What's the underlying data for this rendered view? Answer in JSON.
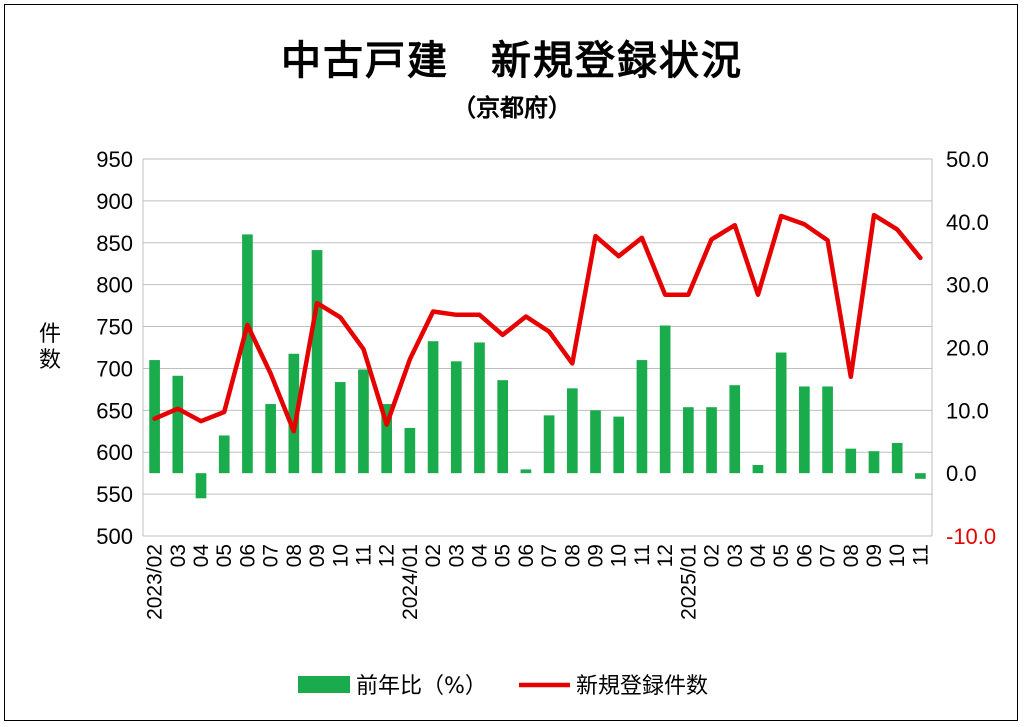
{
  "title": "中古戸建　新規登録状況",
  "subtitle": "（京都府）",
  "colors": {
    "bar": "#1aab4c",
    "line": "#e60000",
    "negative_label": "#e60000",
    "grid": "#bfbfbf"
  },
  "chart_data": {
    "type": "bar+line",
    "x_labels": [
      "2023/02",
      "03",
      "04",
      "05",
      "06",
      "07",
      "08",
      "09",
      "10",
      "11",
      "12",
      "2024/01",
      "02",
      "03",
      "04",
      "05",
      "06",
      "07",
      "08",
      "09",
      "10",
      "11",
      "12",
      "2025/01",
      "02",
      "03",
      "04",
      "05",
      "06",
      "07",
      "08",
      "09",
      "10",
      "11"
    ],
    "series": [
      {
        "name": "前年比（%）",
        "type": "bar",
        "axis": "right",
        "values": [
          18.0,
          15.5,
          -4.0,
          6.0,
          38.0,
          11.0,
          19.0,
          35.5,
          14.5,
          16.5,
          11.0,
          7.2,
          21.0,
          17.8,
          20.8,
          14.8,
          0.6,
          9.2,
          13.5,
          10.0,
          9.0,
          18.0,
          23.5,
          10.5,
          10.5,
          14.0,
          1.3,
          19.2,
          13.8,
          13.8,
          3.9,
          3.5,
          4.8,
          -0.9
        ]
      },
      {
        "name": "新規登録件数",
        "type": "line",
        "axis": "left",
        "values": [
          640,
          652,
          637,
          648,
          752,
          694,
          625,
          778,
          761,
          723,
          633,
          711,
          768,
          764,
          764,
          740,
          762,
          744,
          706,
          858,
          834,
          856,
          788,
          788,
          854,
          871,
          788,
          882,
          872,
          853,
          690,
          883,
          866,
          832
        ]
      }
    ],
    "y_left": {
      "label": "件数",
      "min": 500,
      "max": 950,
      "step": 50,
      "ticks": [
        "950",
        "900",
        "850",
        "800",
        "750",
        "700",
        "650",
        "600",
        "550",
        "500"
      ]
    },
    "y_right": {
      "min": -10.0,
      "max": 50.0,
      "step": 10,
      "ticks": [
        "50.0",
        "40.0",
        "30.0",
        "20.0",
        "10.0",
        "0.0",
        "-10.0"
      ]
    },
    "grid": true,
    "legend_position": "bottom"
  }
}
